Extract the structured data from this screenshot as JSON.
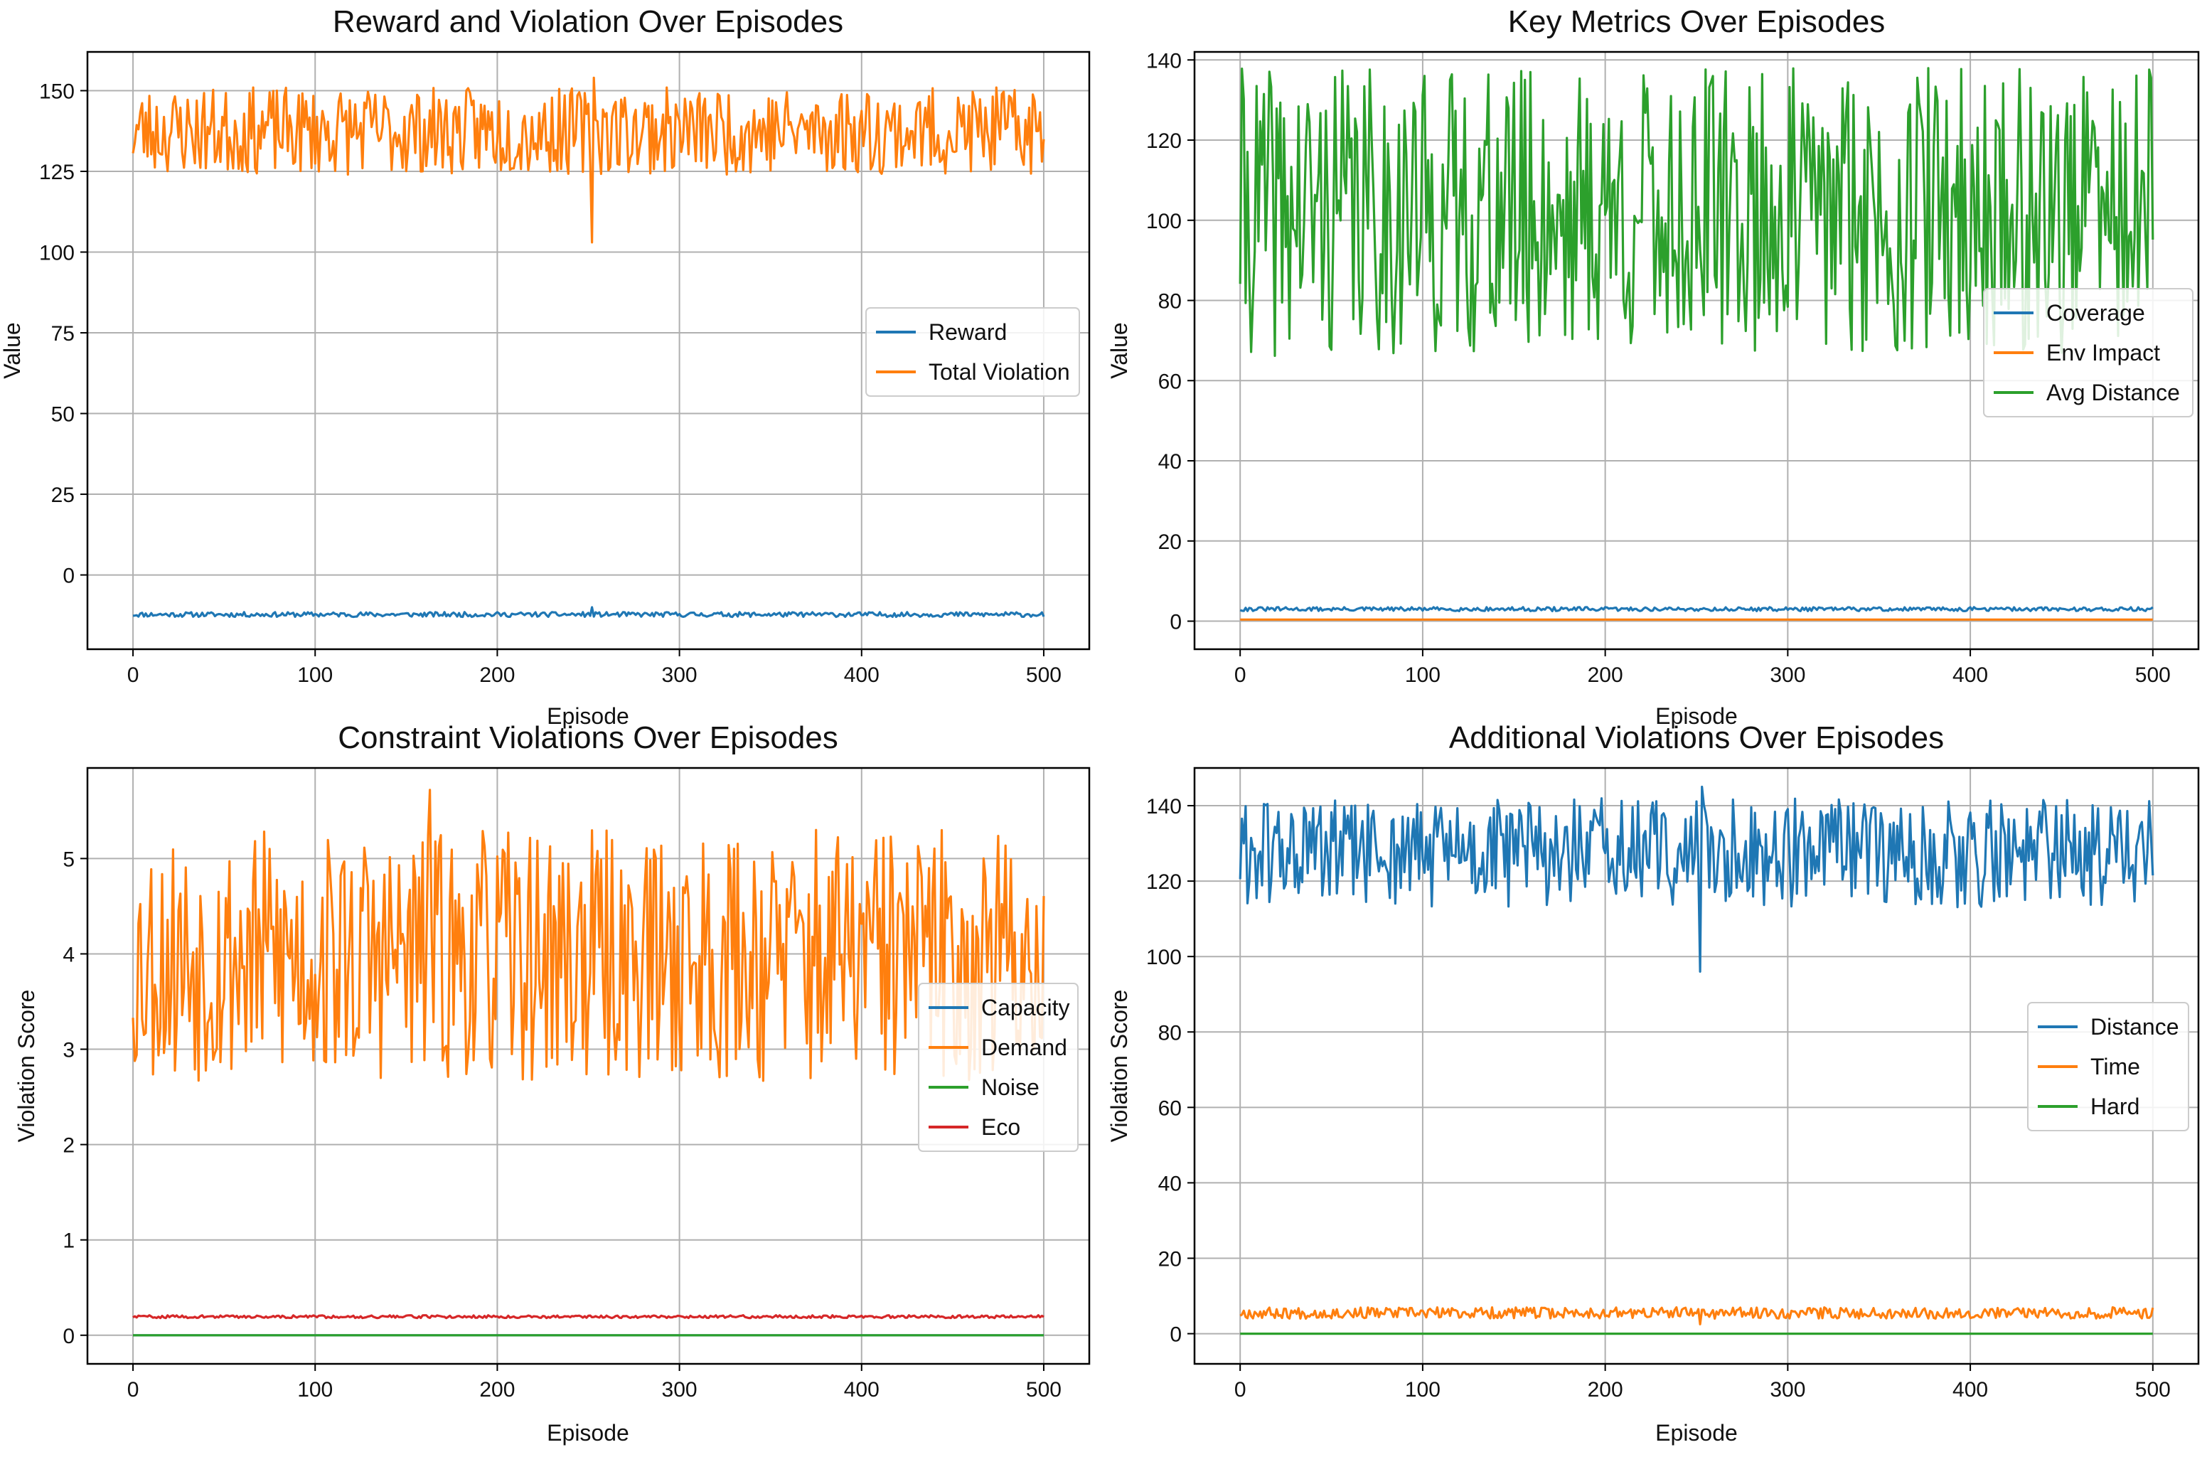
{
  "chart_data": [
    {
      "type": "line",
      "title": "Reward and Violation Over Episodes",
      "xlabel": "Episode",
      "ylabel": "Value",
      "xlim": [
        -25,
        525
      ],
      "ylim": [
        -23,
        162
      ],
      "xticks": [
        0,
        100,
        200,
        300,
        400,
        500
      ],
      "yticks": [
        0,
        25,
        50,
        75,
        100,
        125,
        150
      ],
      "grid": true,
      "legend_position": "center-right",
      "series": [
        {
          "name": "Reward",
          "color": "#1f77b4",
          "pattern": {
            "base": -13,
            "spread": 1.5,
            "seed": 11,
            "outliers": [
              [
                252,
                -10
              ]
            ]
          }
        },
        {
          "name": "Total Violation",
          "color": "#ff7f0e",
          "pattern": {
            "base": 124,
            "spread": 27,
            "seed": 23,
            "outliers": [
              [
                252,
                103
              ],
              [
                253,
                154
              ]
            ]
          }
        }
      ]
    },
    {
      "type": "line",
      "title": "Key Metrics Over Episodes",
      "xlabel": "Episode",
      "ylabel": "Value",
      "xlim": [
        -25,
        525
      ],
      "ylim": [
        -7,
        142
      ],
      "xticks": [
        0,
        100,
        200,
        300,
        400,
        500
      ],
      "yticks": [
        0,
        20,
        40,
        60,
        80,
        100,
        120,
        140
      ],
      "grid": true,
      "legend_position": "center-right",
      "series": [
        {
          "name": "Coverage",
          "color": "#1f77b4",
          "pattern": {
            "base": 2.5,
            "spread": 1.0,
            "seed": 31
          }
        },
        {
          "name": "Env Impact",
          "color": "#ff7f0e",
          "pattern": {
            "base": 0.4,
            "spread": 0.0,
            "seed": 37
          }
        },
        {
          "name": "Avg Distance",
          "color": "#2ca02c",
          "pattern": {
            "base": 66,
            "spread": 72,
            "seed": 41
          }
        }
      ]
    },
    {
      "type": "line",
      "title": "Constraint Violations Over Episodes",
      "xlabel": "Episode",
      "ylabel": "Violation Score",
      "xlim": [
        -25,
        525
      ],
      "ylim": [
        -0.3,
        5.95
      ],
      "xticks": [
        0,
        100,
        200,
        300,
        400,
        500
      ],
      "yticks": [
        0,
        1,
        2,
        3,
        4,
        5
      ],
      "grid": true,
      "legend_position": "center-right",
      "series": [
        {
          "name": "Capacity",
          "color": "#1f77b4",
          "pattern": {
            "base": 0.0,
            "spread": 0.0,
            "seed": 51
          }
        },
        {
          "name": "Demand",
          "color": "#ff7f0e",
          "pattern": {
            "base": 2.65,
            "spread": 2.65,
            "seed": 53,
            "outliers": [
              [
                163,
                5.72
              ]
            ]
          }
        },
        {
          "name": "Noise",
          "color": "#2ca02c",
          "pattern": {
            "base": 0.0,
            "spread": 0.0,
            "seed": 57
          }
        },
        {
          "name": "Eco",
          "color": "#d62728",
          "pattern": {
            "base": 0.18,
            "spread": 0.03,
            "seed": 59
          }
        }
      ]
    },
    {
      "type": "line",
      "title": "Additional Violations Over Episodes",
      "xlabel": "Episode",
      "ylabel": "Violation Score",
      "xlim": [
        -25,
        525
      ],
      "ylim": [
        -8,
        150
      ],
      "xticks": [
        0,
        100,
        200,
        300,
        400,
        500
      ],
      "yticks": [
        0,
        20,
        40,
        60,
        80,
        100,
        120,
        140
      ],
      "grid": true,
      "legend_position": "center-right",
      "series": [
        {
          "name": "Distance",
          "color": "#1f77b4",
          "pattern": {
            "base": 113,
            "spread": 29,
            "seed": 61,
            "outliers": [
              [
                252,
                96
              ],
              [
                253,
                145
              ]
            ]
          }
        },
        {
          "name": "Time",
          "color": "#ff7f0e",
          "pattern": {
            "base": 4,
            "spread": 3,
            "seed": 67,
            "outliers": [
              [
                252,
                2.5
              ]
            ]
          }
        },
        {
          "name": "Hard",
          "color": "#2ca02c",
          "pattern": {
            "base": 0.0,
            "spread": 0.0,
            "seed": 71
          }
        }
      ]
    }
  ]
}
